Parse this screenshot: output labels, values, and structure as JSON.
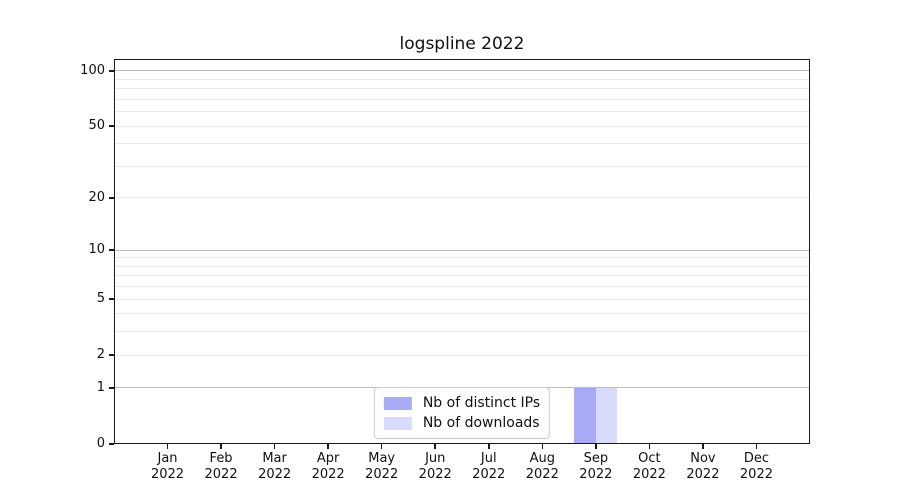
{
  "chart_data": {
    "type": "bar",
    "title": "logspline 2022",
    "categories": [
      "Jan",
      "Feb",
      "Mar",
      "Apr",
      "May",
      "Jun",
      "Jul",
      "Aug",
      "Sep",
      "Oct",
      "Nov",
      "Dec"
    ],
    "x_year_line": "2022",
    "series": [
      {
        "name": "Nb of distinct IPs",
        "color": "#a8aaf6",
        "values": [
          0,
          0,
          0,
          0,
          0,
          0,
          0,
          0,
          1,
          0,
          0,
          0
        ]
      },
      {
        "name": "Nb of downloads",
        "color": "#d9dbfb",
        "values": [
          0,
          0,
          0,
          0,
          0,
          0,
          0,
          0,
          1,
          0,
          0,
          0
        ]
      }
    ],
    "xlabel": "",
    "ylabel": "",
    "yscale": "log1p",
    "ylim": [
      0,
      116
    ],
    "y_tick_values": [
      0,
      1,
      2,
      5,
      10,
      20,
      50,
      100
    ],
    "y_tick_labels": [
      "0",
      "1",
      "2",
      "5",
      "10",
      "20",
      "50",
      "100"
    ],
    "major_grid_values": [
      1,
      10,
      100
    ],
    "minor_grid_values": [
      2,
      3,
      4,
      5,
      6,
      7,
      8,
      9,
      20,
      30,
      40,
      50,
      60,
      70,
      80,
      90
    ],
    "grid": "both",
    "legend_position": "lower center",
    "colors": {
      "major_grid": "#bdbdbd",
      "minor_grid": "#e9e9e9",
      "spine": "#1a1a1a",
      "text": "#111111"
    }
  }
}
